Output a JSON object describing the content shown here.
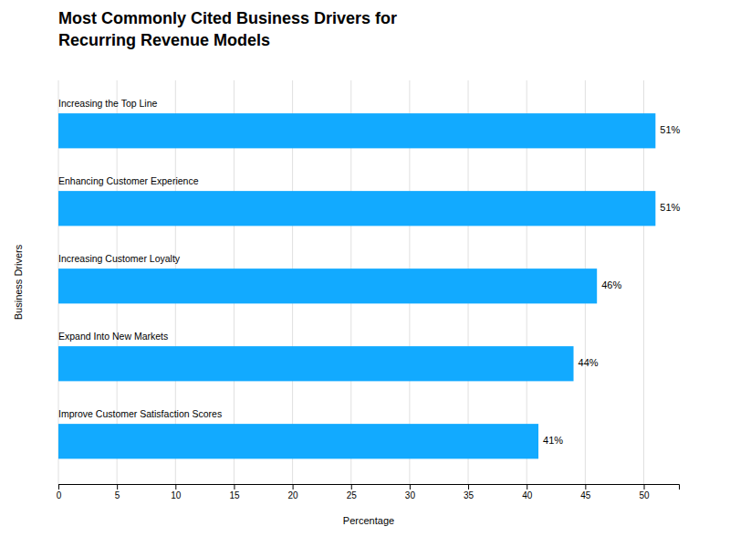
{
  "chart_data": {
    "type": "bar",
    "orientation": "horizontal",
    "title": "Most Commonly Cited Business Drivers for\nRecurring Revenue Models",
    "categories": [
      "Improve Customer Satisfaction Scores",
      "Expand Into New Markets",
      "Increasing Customer Loyalty",
      "Enhancing Customer Experience",
      "Increasing the Top Line"
    ],
    "values": [
      41,
      44,
      46,
      51,
      51
    ],
    "value_labels": [
      "41%",
      "44%",
      "46%",
      "51%",
      "51%"
    ],
    "data_labels": true,
    "color": "#12AAFF",
    "x_label": "Percentage",
    "y_label": "Business Drivers",
    "xlim": [
      0,
      53
    ],
    "xticks": [
      0,
      5,
      10,
      15,
      20,
      25,
      30,
      35,
      40,
      45,
      50
    ],
    "grid": true,
    "tick_labels": "x"
  }
}
